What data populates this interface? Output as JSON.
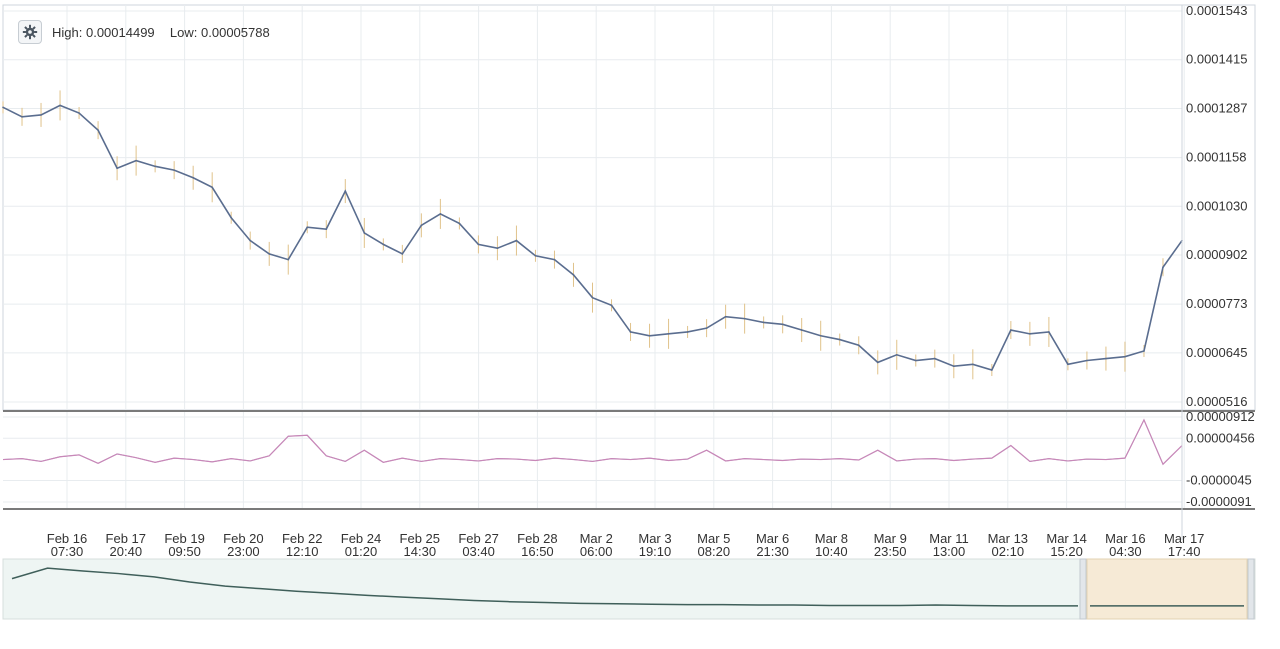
{
  "toolbar": {
    "settings_icon": "gear-icon",
    "high_label": "High:",
    "high_value": "0.00014499",
    "low_label": "Low:",
    "low_value": "0.00005788"
  },
  "colors": {
    "price_line": "#5a6d8f",
    "price_candles": "#e0c28a",
    "oscillator_a": "#c987b8",
    "oscillator_b": "#9aa6c2",
    "navigator_line": "#3f5f5a",
    "navigator_bg": "#eef5f3",
    "navigator_selection": "#f6ead6",
    "grid": "#e8ecef",
    "separator": "#7a7a7a"
  },
  "chart_data": [
    {
      "type": "line",
      "panel": "price",
      "y_ticks": [
        "0.0001543",
        "0.0001415",
        "0.0001287",
        "0.0001158",
        "0.0001030",
        "0.0000902",
        "0.0000773",
        "0.0000645",
        "0.0000516"
      ],
      "ylim": [
        5.16e-05,
        0.0001543
      ],
      "x_ticks": [
        [
          "Feb 16",
          "07:30"
        ],
        [
          "Feb 17",
          "20:40"
        ],
        [
          "Feb 19",
          "09:50"
        ],
        [
          "Feb 20",
          "23:00"
        ],
        [
          "Feb 22",
          "12:10"
        ],
        [
          "Feb 24",
          "01:20"
        ],
        [
          "Feb 25",
          "14:30"
        ],
        [
          "Feb 27",
          "03:40"
        ],
        [
          "Feb 28",
          "16:50"
        ],
        [
          "Mar 2",
          "06:00"
        ],
        [
          "Mar 3",
          "19:10"
        ],
        [
          "Mar 5",
          "08:20"
        ],
        [
          "Mar 6",
          "21:30"
        ],
        [
          "Mar 8",
          "10:40"
        ],
        [
          "Mar 9",
          "23:50"
        ],
        [
          "Mar 11",
          "13:00"
        ],
        [
          "Mar 13",
          "02:10"
        ],
        [
          "Mar 14",
          "15:20"
        ],
        [
          "Mar 16",
          "04:30"
        ],
        [
          "Mar 17",
          "17:40"
        ]
      ],
      "x": [
        "Feb 15 12:00",
        "Feb 16 07:30",
        "Feb 16 14:00",
        "Feb 16 20:00",
        "Feb 17 08:00",
        "Feb 17 20:40",
        "Feb 18 06:00",
        "Feb 18 14:00",
        "Feb 19 00:00",
        "Feb 19 09:50",
        "Feb 19 20:00",
        "Feb 20 12:00",
        "Feb 20 23:00",
        "Feb 21 08:00",
        "Feb 21 20:00",
        "Feb 22 12:10",
        "Feb 23 00:00",
        "Feb 23 12:00",
        "Feb 24 01:20",
        "Feb 24 12:00",
        "Feb 24 20:00",
        "Feb 25 04:00",
        "Feb 25 14:30",
        "Feb 26 02:00",
        "Feb 26 14:00",
        "Feb 27 03:40",
        "Feb 27 14:00",
        "Feb 28 02:00",
        "Feb 28 16:50",
        "Mar 1 06:00",
        "Mar 1 18:00",
        "Mar 2 06:00",
        "Mar 2 18:00",
        "Mar 3 06:00",
        "Mar 3 19:10",
        "Mar 4 06:00",
        "Mar 4 18:00",
        "Mar 5 08:20",
        "Mar 5 20:00",
        "Mar 6 08:00",
        "Mar 6 21:30",
        "Mar 7 10:00",
        "Mar 7 22:00",
        "Mar 8 10:40",
        "Mar 8 22:00",
        "Mar 9 10:00",
        "Mar 9 23:50",
        "Mar 10 12:00",
        "Mar 11 00:00",
        "Mar 11 13:00",
        "Mar 12 00:00",
        "Mar 12 12:00",
        "Mar 13 02:10",
        "Mar 13 14:00",
        "Mar 14 02:00",
        "Mar 14 15:20",
        "Mar 15 04:00",
        "Mar 15 16:00",
        "Mar 16 04:30",
        "Mar 16 12:00",
        "Mar 16 20:00",
        "Mar 17 06:00",
        "Mar 17 17:40"
      ],
      "series": [
        {
          "values": [
            0.000129,
            0.0001265,
            0.000127,
            0.0001295,
            0.0001275,
            0.000123,
            0.000113,
            0.000115,
            0.0001135,
            0.0001125,
            0.0001105,
            0.000108,
            0.0001,
            9.4e-05,
            9.05e-05,
            8.9e-05,
            9.75e-05,
            9.7e-05,
            0.000107,
            9.6e-05,
            9.3e-05,
            9.05e-05,
            9.8e-05,
            0.000101,
            9.85e-05,
            9.3e-05,
            9.2e-05,
            9.4e-05,
            9e-05,
            8.9e-05,
            8.5e-05,
            7.9e-05,
            7.7e-05,
            7e-05,
            6.9e-05,
            6.95e-05,
            7e-05,
            7.1e-05,
            7.4e-05,
            7.35e-05,
            7.25e-05,
            7.2e-05,
            7.05e-05,
            6.9e-05,
            6.8e-05,
            6.65e-05,
            6.2e-05,
            6.4e-05,
            6.25e-05,
            6.3e-05,
            6.1e-05,
            6.15e-05,
            6e-05,
            7.05e-05,
            6.95e-05,
            7e-05,
            6.15e-05,
            6.25e-05,
            6.3e-05,
            6.35e-05,
            6.5e-05,
            8.7e-05,
            9.4e-05
          ]
        }
      ]
    },
    {
      "type": "line",
      "panel": "oscillator",
      "y_ticks": [
        "0.00000912",
        "0.00000456",
        "-0.0000045",
        "-0.0000091"
      ],
      "ylim": [
        -9.1e-06,
        9.12e-06
      ],
      "series": [
        {
          "values": [
            0.0,
            2e-07,
            -4e-07,
            6e-07,
            1e-06,
            -8e-07,
            1.2e-06,
            4e-07,
            -6e-07,
            3e-07,
            0.0,
            -5e-07,
            2e-07,
            -3e-07,
            8e-07,
            5e-06,
            5.2e-06,
            8e-07,
            -4e-07,
            2e-06,
            -6e-07,
            3e-07,
            -4e-07,
            2e-07,
            0.0,
            -3e-07,
            2e-07,
            1e-07,
            -2e-07,
            3e-07,
            0.0,
            -4e-07,
            2e-07,
            0.0,
            3e-07,
            -2e-07,
            1e-07,
            2e-06,
            -3e-07,
            2e-07,
            0.0,
            -2e-07,
            1e-07,
            0.0,
            2e-07,
            -1e-07,
            2e-06,
            -3e-07,
            1e-07,
            2e-07,
            -2e-07,
            1e-07,
            3e-07,
            3e-06,
            -4e-07,
            2e-07,
            -3e-07,
            1e-07,
            0.0,
            3e-07,
            8.5e-06,
            -1e-06,
            3e-06
          ]
        }
      ]
    },
    {
      "type": "area",
      "panel": "navigator",
      "series": [
        {
          "values": [
            0.7,
            0.95,
            0.88,
            0.82,
            0.74,
            0.62,
            0.52,
            0.46,
            0.4,
            0.35,
            0.3,
            0.26,
            0.22,
            0.18,
            0.15,
            0.13,
            0.11,
            0.1,
            0.09,
            0.08,
            0.08,
            0.07,
            0.07,
            0.06,
            0.06,
            0.06,
            0.07,
            0.06,
            0.05,
            0.05,
            0.05
          ]
        }
      ]
    }
  ]
}
